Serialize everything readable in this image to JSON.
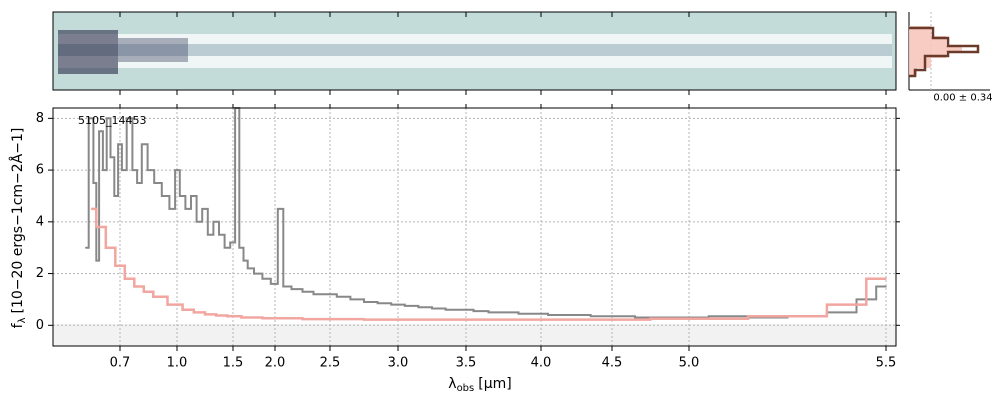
{
  "chart_data": {
    "type": "line",
    "object_label": "5105_14453",
    "xlabel_main": "λ",
    "xlabel_sub": "obs",
    "xlabel_unit": "[μm]",
    "ylabel_main": "f",
    "ylabel_sub": "λ",
    "ylabel_unit": "[10−20 ergs−1cm−2Å−1]",
    "x_ticks": [
      "0.7",
      "1.0",
      "1.5",
      "2.0",
      "2.5",
      "3.0",
      "3.5",
      "4.0",
      "4.5",
      "5.0",
      "5.5"
    ],
    "x_tick_values": [
      0.7,
      1.0,
      1.5,
      2.0,
      2.5,
      3.0,
      3.5,
      4.0,
      4.5,
      5.0,
      5.5
    ],
    "y_ticks": [
      "0",
      "2",
      "4",
      "6",
      "8"
    ],
    "y_tick_values": [
      0,
      2,
      4,
      6,
      8
    ],
    "ylim": [
      -0.8,
      8.4
    ],
    "grid": true,
    "series": [
      {
        "color": "#888888",
        "x": [
          0.52,
          0.55,
          0.57,
          0.58,
          0.6,
          0.62,
          0.64,
          0.66,
          0.68,
          0.7,
          0.72,
          0.75,
          0.78,
          0.8,
          0.83,
          0.86,
          0.9,
          0.94,
          0.98,
          1.0,
          1.05,
          1.1,
          1.15,
          1.2,
          1.25,
          1.3,
          1.35,
          1.4,
          1.45,
          1.5,
          1.55,
          1.6,
          1.65,
          1.7,
          1.8,
          1.9,
          2.0,
          2.05,
          2.1,
          2.2,
          2.3,
          2.4,
          2.5,
          2.6,
          2.7,
          2.8,
          2.9,
          3.0,
          3.1,
          3.2,
          3.3,
          3.4,
          3.5,
          3.6,
          3.7,
          3.8,
          3.9,
          4.0,
          4.1,
          4.2,
          4.3,
          4.4,
          4.5,
          4.6,
          4.7,
          4.8,
          4.9,
          5.0,
          5.1,
          5.2,
          5.3,
          5.4,
          5.45,
          5.5
        ],
        "y": [
          3.0,
          8.0,
          5.5,
          2.5,
          7.5,
          6.0,
          8.0,
          6.5,
          5.0,
          7.0,
          6.0,
          8.0,
          6.0,
          5.5,
          7.0,
          6.0,
          5.5,
          5.0,
          4.5,
          6.0,
          5.0,
          4.5,
          5.0,
          4.0,
          4.5,
          3.5,
          4.0,
          3.5,
          3.0,
          3.2,
          8.4,
          3.0,
          2.5,
          2.2,
          2.0,
          1.8,
          1.6,
          4.5,
          1.5,
          1.4,
          1.3,
          1.2,
          1.2,
          1.1,
          1.0,
          0.9,
          0.85,
          0.8,
          0.75,
          0.7,
          0.65,
          0.6,
          0.6,
          0.55,
          0.5,
          0.5,
          0.45,
          0.45,
          0.4,
          0.4,
          0.4,
          0.35,
          0.35,
          0.35,
          0.3,
          0.3,
          0.3,
          0.3,
          0.35,
          0.3,
          0.35,
          0.5,
          1.0,
          1.5
        ]
      },
      {
        "color": "#f2a6a0",
        "x": [
          0.55,
          0.6,
          0.65,
          0.7,
          0.75,
          0.8,
          0.85,
          0.9,
          1.0,
          1.1,
          1.2,
          1.3,
          1.4,
          1.5,
          1.7,
          2.0,
          2.5,
          3.0,
          3.5,
          4.0,
          4.5,
          5.0,
          5.3,
          5.4,
          5.5
        ],
        "y": [
          4.5,
          3.8,
          3.0,
          2.3,
          1.8,
          1.5,
          1.3,
          1.1,
          0.8,
          0.6,
          0.5,
          0.42,
          0.38,
          0.35,
          0.3,
          0.27,
          0.24,
          0.22,
          0.22,
          0.22,
          0.22,
          0.25,
          0.35,
          0.8,
          1.8
        ]
      }
    ],
    "side_histogram": {
      "label": "0.00 ± 0.34"
    }
  }
}
